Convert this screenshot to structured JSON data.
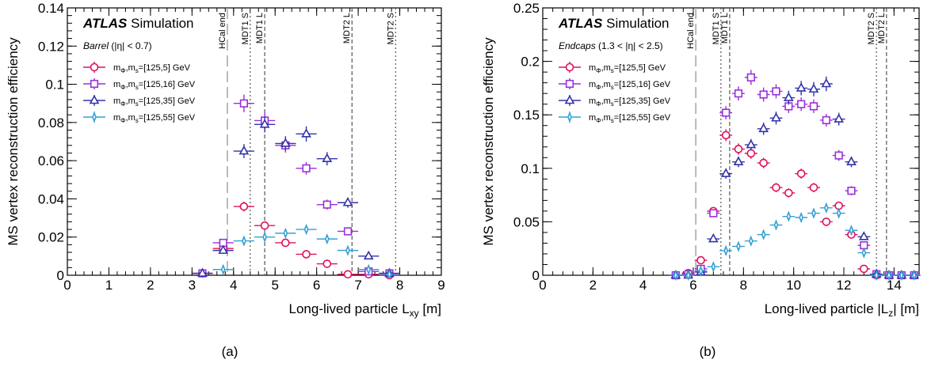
{
  "chart_data": [
    {
      "type": "scatter",
      "panel_label": "(a)",
      "experiment": "ATLAS",
      "experiment_suffix": "Simulation",
      "region": "Barrel",
      "region_cut": "(|η| < 0.7)",
      "xlabel": "Long-lived particle L",
      "xlabel_sub": "xy",
      "xlabel_unit": " [m]",
      "ylabel": "MS vertex reconstruction efficiency",
      "xlim": [
        0,
        9
      ],
      "ylim": [
        0,
        0.14
      ],
      "xticks": [
        "0",
        "1",
        "2",
        "3",
        "4",
        "5",
        "6",
        "7",
        "8",
        "9"
      ],
      "yticks": [
        "0",
        "0.02",
        "0.04",
        "0.06",
        "0.08",
        "0.1",
        "0.12",
        "0.14"
      ],
      "lines": [
        {
          "label": "HCal end",
          "x": 3.85,
          "style": "long-dash"
        },
        {
          "label": "MDT1 S",
          "x": 4.4,
          "style": "dotted"
        },
        {
          "label": "MDT1 L",
          "x": 4.75,
          "style": "dashed"
        },
        {
          "label": "MDT2 L",
          "x": 6.85,
          "style": "dashed"
        },
        {
          "label": "MDT2 S",
          "x": 7.9,
          "style": "dotted"
        }
      ],
      "series": [
        {
          "name": "mΦ,ms=[125,5] GeV",
          "marker": "circle",
          "color": "#e0115f",
          "x": [
            3.25,
            3.75,
            4.25,
            4.75,
            5.25,
            5.75,
            6.25,
            6.75,
            7.25,
            7.75
          ],
          "y": [
            0.001,
            0.014,
            0.036,
            0.026,
            0.017,
            0.011,
            0.006,
            0.0005,
            0.0005,
            0.0
          ]
        },
        {
          "name": "mΦ,ms=[125,16] GeV",
          "marker": "square",
          "color": "#9b30d9",
          "x": [
            3.25,
            3.75,
            4.25,
            4.75,
            5.25,
            5.75,
            6.25,
            6.75,
            7.25,
            7.75
          ],
          "y": [
            0.001,
            0.017,
            0.09,
            0.081,
            0.068,
            0.056,
            0.037,
            0.023,
            0.002,
            0.001
          ]
        },
        {
          "name": "mΦ,ms=[125,35] GeV",
          "marker": "triangle",
          "color": "#3333aa",
          "x": [
            3.25,
            3.75,
            4.25,
            4.75,
            5.25,
            5.75,
            6.25,
            6.75,
            7.25,
            7.75
          ],
          "y": [
            0.001,
            0.013,
            0.065,
            0.079,
            0.069,
            0.074,
            0.061,
            0.038,
            0.01,
            0.001
          ]
        },
        {
          "name": "mΦ,ms=[125,55] GeV",
          "marker": "star",
          "color": "#33a0d4",
          "x": [
            3.75,
            4.25,
            4.75,
            5.25,
            5.75,
            6.25,
            6.75,
            7.25,
            7.75
          ],
          "y": [
            0.003,
            0.018,
            0.02,
            0.022,
            0.024,
            0.019,
            0.013,
            0.003,
            0.0005
          ]
        }
      ]
    },
    {
      "type": "scatter",
      "panel_label": "(b)",
      "experiment": "ATLAS",
      "experiment_suffix": "Simulation",
      "region": "Endcaps",
      "region_cut": "(1.3 < |η| < 2.5)",
      "xlabel": "Long-lived particle |L",
      "xlabel_sub": "z",
      "xlabel_unit": "| [m]",
      "ylabel": "MS vertex reconstruction efficiency",
      "xlim": [
        0,
        15
      ],
      "ylim": [
        0,
        0.25
      ],
      "xticks": [
        "0",
        "2",
        "4",
        "6",
        "8",
        "10",
        "12",
        "14"
      ],
      "yticks": [
        "0",
        "0.05",
        "0.1",
        "0.15",
        "0.2",
        "0.25"
      ],
      "lines": [
        {
          "label": "HCal end",
          "x": 6.1,
          "style": "long-dash"
        },
        {
          "label": "MDT1 S",
          "x": 7.1,
          "style": "dotted"
        },
        {
          "label": "MDT1 L",
          "x": 7.45,
          "style": "dashed"
        },
        {
          "label": "MDT2 S",
          "x": 13.3,
          "style": "dotted"
        },
        {
          "label": "MDT2 L",
          "x": 13.7,
          "style": "dashed"
        }
      ],
      "series": [
        {
          "name": "mΦ,ms=[125,5] GeV",
          "marker": "circle",
          "color": "#e0115f",
          "x": [
            5.3,
            5.8,
            6.3,
            6.8,
            7.3,
            7.8,
            8.3,
            8.8,
            9.3,
            9.8,
            10.3,
            10.8,
            11.3,
            11.8,
            12.3,
            12.8,
            13.3,
            13.8,
            14.3,
            14.8
          ],
          "y": [
            0.0,
            0.002,
            0.014,
            0.06,
            0.131,
            0.118,
            0.114,
            0.105,
            0.082,
            0.077,
            0.095,
            0.082,
            0.05,
            0.065,
            0.038,
            0.006,
            0.0,
            0.0,
            0.0,
            0.0
          ]
        },
        {
          "name": "mΦ,ms=[125,16] GeV",
          "marker": "square",
          "color": "#9b30d9",
          "x": [
            5.3,
            5.8,
            6.3,
            6.8,
            7.3,
            7.8,
            8.3,
            8.8,
            9.3,
            9.8,
            10.3,
            10.8,
            11.3,
            11.8,
            12.3,
            12.8,
            13.3,
            13.8,
            14.3,
            14.8
          ],
          "y": [
            0.0,
            0.001,
            0.006,
            0.058,
            0.152,
            0.17,
            0.185,
            0.169,
            0.172,
            0.158,
            0.16,
            0.158,
            0.145,
            0.112,
            0.079,
            0.028,
            0.001,
            0.0,
            0.0,
            0.0
          ]
        },
        {
          "name": "mΦ,ms=[125,35] GeV",
          "marker": "triangle",
          "color": "#3333aa",
          "x": [
            5.3,
            5.8,
            6.3,
            6.8,
            7.3,
            7.8,
            8.3,
            8.8,
            9.3,
            9.8,
            10.3,
            10.8,
            11.3,
            11.8,
            12.3,
            12.8,
            13.3,
            13.8,
            14.3,
            14.8
          ],
          "y": [
            0.0,
            0.0,
            0.003,
            0.034,
            0.095,
            0.106,
            0.122,
            0.137,
            0.147,
            0.166,
            0.175,
            0.174,
            0.179,
            0.146,
            0.106,
            0.036,
            0.001,
            0.0,
            0.0,
            0.0
          ]
        },
        {
          "name": "mΦ,ms=[125,55] GeV",
          "marker": "star",
          "color": "#33a0d4",
          "x": [
            5.3,
            5.8,
            6.3,
            6.8,
            7.3,
            7.8,
            8.3,
            8.8,
            9.3,
            9.8,
            10.3,
            10.8,
            11.3,
            11.8,
            12.3,
            12.8,
            13.3,
            13.8,
            14.3,
            14.8
          ],
          "y": [
            0.0,
            0.0,
            0.004,
            0.008,
            0.023,
            0.027,
            0.032,
            0.038,
            0.047,
            0.055,
            0.054,
            0.058,
            0.063,
            0.058,
            0.042,
            0.021,
            0.0,
            0.0,
            0.0,
            0.0
          ]
        }
      ]
    }
  ]
}
